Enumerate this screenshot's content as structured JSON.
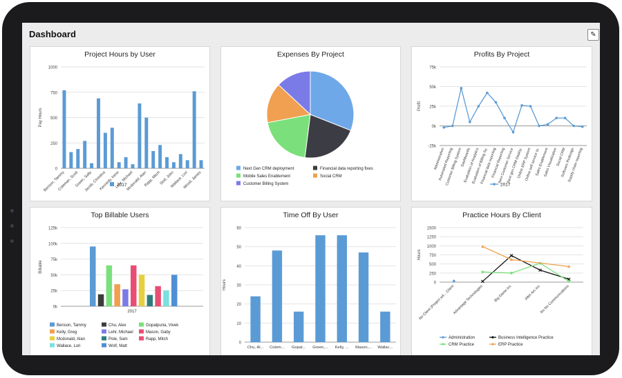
{
  "header": {
    "title": "Dashboard",
    "edit_icon": "pencil-icon"
  },
  "colors": {
    "blue": "#5b9bd5",
    "dark": "#3c3c3c",
    "green": "#7be07b",
    "orange": "#f0a050",
    "purple": "#7b7be8"
  },
  "charts": [
    {
      "id": "hours",
      "title": "Project Hours by User",
      "chart_data": {
        "type": "bar",
        "ylabel": "Pay Hours",
        "ylim": [
          0,
          1000
        ],
        "yticks": [
          "0",
          "250",
          "500",
          "750",
          "1000"
        ],
        "categories": [
          "Benson, Tammy",
          "",
          "Coleman, Scott",
          "",
          "Green, Sally",
          "",
          "Jacob, Christina",
          "",
          "Kennedy, Irene",
          "",
          "Lehr, Michael",
          "",
          "Mcdonald, Alan",
          "",
          "Rapp, Mitch",
          "",
          "Stoll, John",
          "",
          "Wallace, Lori",
          "",
          "Wood, James"
        ],
        "values": [
          770,
          160,
          190,
          270,
          50,
          690,
          350,
          400,
          60,
          110,
          40,
          640,
          500,
          170,
          230,
          110,
          60,
          140,
          80,
          760,
          80
        ],
        "series_name": "2017",
        "legend": "bottom"
      }
    },
    {
      "id": "expenses",
      "title": "Expenses By Project",
      "chart_data": {
        "type": "pie",
        "slices": [
          {
            "label": "Next Gen CRM deployment",
            "value": 31,
            "color": "#6fa8e8"
          },
          {
            "label": "Financial data reporting fixes",
            "value": 21,
            "color": "#3c3c44"
          },
          {
            "label": "Mobile Sales Enablement",
            "value": 20,
            "color": "#7be07b"
          },
          {
            "label": "Social CRM",
            "value": 15,
            "color": "#f0a050"
          },
          {
            "label": "Customer Billing System",
            "value": 13,
            "color": "#7b7be8"
          }
        ],
        "legend": "bottom"
      }
    },
    {
      "id": "profits",
      "title": "Profits By Project",
      "chart_data": {
        "type": "line",
        "ylabel": "Profit",
        "ylim": [
          -25000,
          75000
        ],
        "yticks": [
          "-25k",
          "0k",
          "25k",
          "50k",
          "75k"
        ],
        "categories": [
          "Administration",
          "Automated Reporting",
          "Customer Billing System",
          "Dashboards",
          "Evaluation of Analytics",
          "Evaluation of Billing Sy.",
          "Financial data reporting",
          "Financial Reporting",
          "New Customer Service",
          "Next gen CRM Deploy.",
          "Online ERP System",
          "Online self service to.",
          "Sales Enablement",
          "Sales Visualization",
          "Social CRM",
          "Software Redesign",
          "Supply chain reporting"
        ],
        "values": [
          -2000,
          0,
          48000,
          5000,
          25000,
          42000,
          30000,
          10000,
          -8000,
          26000,
          25000,
          0,
          2000,
          10000,
          10000,
          0,
          -1000
        ],
        "series_name": "2017",
        "legend": "bottom"
      }
    },
    {
      "id": "billable",
      "title": "Top Billable Users",
      "chart_data": {
        "type": "bar",
        "ylabel": "Billable",
        "ylim": [
          0,
          125000
        ],
        "yticks": [
          "0k",
          "25k",
          "50k",
          "75k",
          "100k",
          "125k"
        ],
        "categories": [
          "2017"
        ],
        "series": [
          {
            "name": "Benson, Tammy",
            "value": 95000,
            "color": "#5b9bd5"
          },
          {
            "name": "Chu, Alex",
            "value": 19000,
            "color": "#3c3c3c"
          },
          {
            "name": "Gopalpuria, Vivek",
            "value": 65000,
            "color": "#7be07b"
          },
          {
            "name": "Kelly, Greg",
            "value": 35000,
            "color": "#f0a050"
          },
          {
            "name": "Lehr, Michael",
            "value": 27000,
            "color": "#7b7be8"
          },
          {
            "name": "Mason, Gaby",
            "value": 65000,
            "color": "#e84e74"
          },
          {
            "name": "Mcdonald, Alan",
            "value": 50000,
            "color": "#e6d040"
          },
          {
            "name": "Pole, Sam",
            "value": 18000,
            "color": "#2e7d7d"
          },
          {
            "name": "Rapp, Mitch",
            "value": 32000,
            "color": "#e84e74"
          },
          {
            "name": "Wallace, Lori",
            "value": 25000,
            "color": "#7be0e0"
          },
          {
            "name": "Wolf, Matt",
            "value": 50000,
            "color": "#4f8fd6"
          }
        ],
        "legend": "bottom"
      }
    },
    {
      "id": "timeoff",
      "title": "Time Off By User",
      "chart_data": {
        "type": "bar",
        "ylabel": "Hours",
        "ylim": [
          0,
          60
        ],
        "yticks": [
          "0",
          "10",
          "20",
          "30",
          "40",
          "50",
          "60"
        ],
        "categories": [
          "Chu, Al...",
          "Colem...",
          "Gopal...",
          "Green,...",
          "Kelly, ...",
          "Mason,...",
          "Wallac..."
        ],
        "values": [
          24,
          48,
          16,
          56,
          56,
          47,
          16
        ]
      }
    },
    {
      "id": "practice",
      "title": "Practice Hours By Client",
      "chart_data": {
        "type": "line",
        "ylabel": "Hours",
        "ylim": [
          0,
          1500
        ],
        "yticks": [
          "0",
          "250",
          "500",
          "750",
          "1000",
          "1250",
          "1500"
        ],
        "categories": [
          "No Client (Project wit... Client",
          "Advantage Technologies",
          "Big Game Inc",
          "Jitter Arc Inc",
          "No No Communications"
        ],
        "series": [
          {
            "name": "Administration",
            "values": [
              30,
              null,
              null,
              null,
              null
            ],
            "color": "#5b9bd5",
            "marker": "diamond"
          },
          {
            "name": "Business Intelligence Practice",
            "values": [
              null,
              20,
              730,
              330,
              80
            ],
            "color": "#111111",
            "marker": "x"
          },
          {
            "name": "CRM Practice",
            "values": [
              null,
              280,
              250,
              520,
              20
            ],
            "color": "#7be07b",
            "marker": "circle"
          },
          {
            "name": "ERP Practice",
            "values": [
              null,
              980,
              620,
              null,
              430
            ],
            "color": "#f0a050",
            "marker": "triangle"
          }
        ],
        "legend": "bottom"
      }
    }
  ]
}
